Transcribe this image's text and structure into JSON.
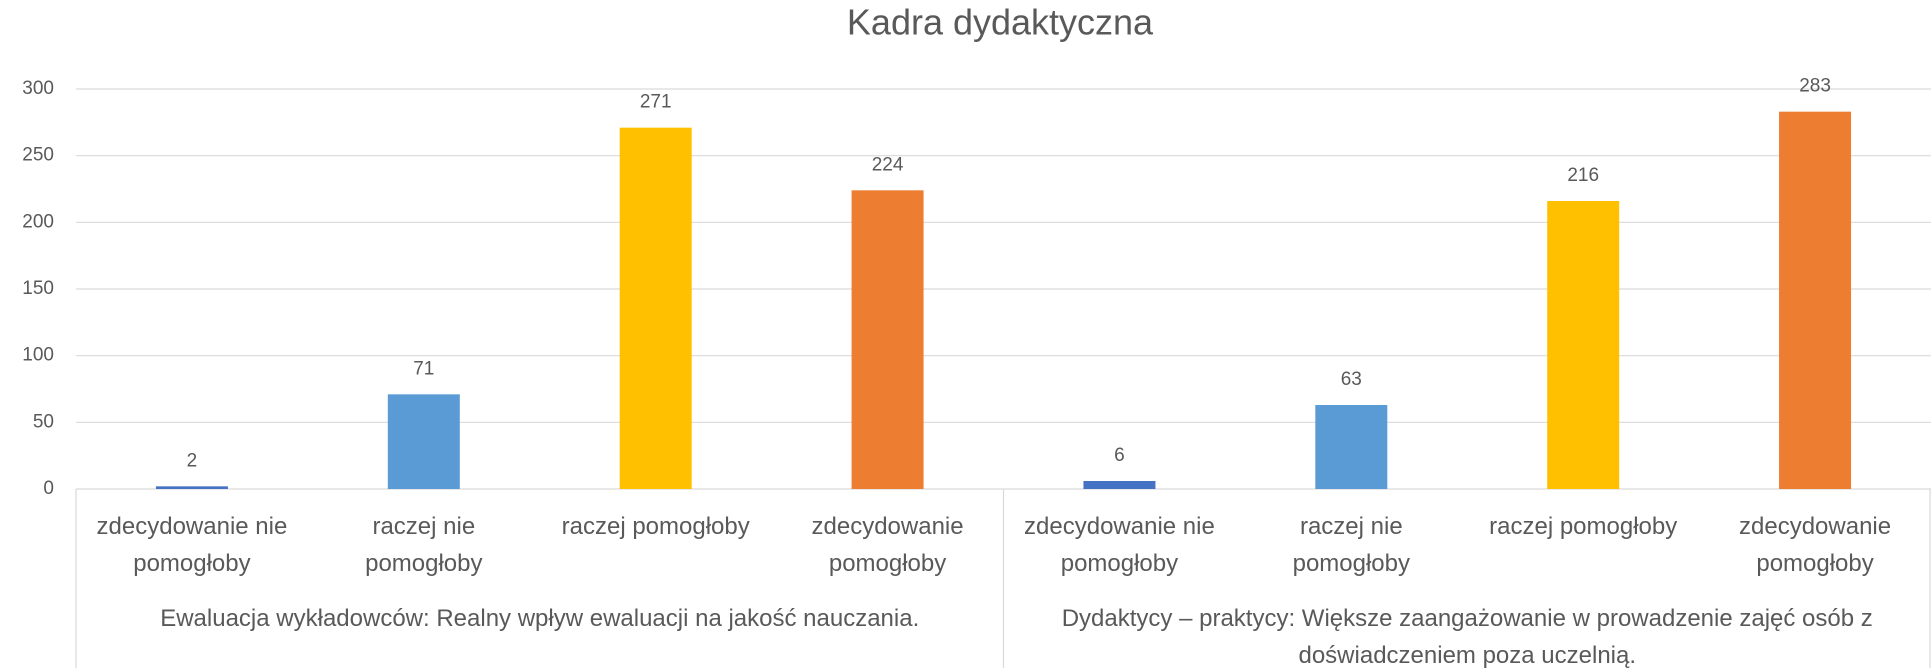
{
  "chart_data": {
    "type": "bar",
    "title": "Kadra dydaktyczna",
    "categories": [
      "zdecydowanie nie pomogłoby",
      "raczej nie pomogłoby",
      "raczej pomogłoby",
      "zdecydowanie pomogłoby",
      "zdecydowanie nie pomogłoby",
      "raczej nie pomogłoby",
      "raczej pomogłoby",
      "zdecydowanie pomogłoby"
    ],
    "groups": [
      "Ewaluacja wykładowców: Realny wpływ ewaluacji na jakość nauczania.",
      "Dydaktycy – praktycy: Większe zaangażowanie w prowadzenie zajęć osób z doświadczeniem poza uczelnią."
    ],
    "values": [
      2,
      71,
      271,
      224,
      6,
      63,
      216,
      283
    ],
    "colors": [
      "#4472c4",
      "#5b9bd5",
      "#ffc000",
      "#ed7d31",
      "#4472c4",
      "#5b9bd5",
      "#ffc000",
      "#ed7d31"
    ],
    "ylim": [
      0,
      300
    ],
    "yticks": [
      0,
      50,
      100,
      150,
      200,
      250,
      300
    ],
    "grid": true
  }
}
